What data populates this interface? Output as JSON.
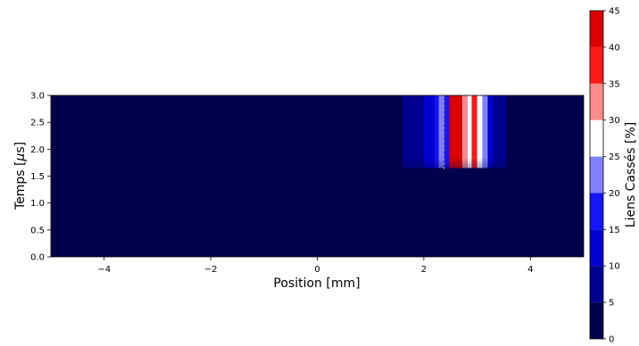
{
  "chart_data": {
    "type": "heatmap",
    "xlabel": "Position [mm]",
    "ylabel_prefix": "Temps [",
    "ylabel_mu": "µ",
    "ylabel_suffix": "s]",
    "xlim": [
      -5,
      5
    ],
    "ylim": [
      0,
      3
    ],
    "x_ticks": [
      -4,
      -2,
      0,
      2,
      4
    ],
    "x_tick_labels": [
      "−4",
      "−2",
      "0",
      "2",
      "4"
    ],
    "y_ticks": [
      0,
      0.5,
      1,
      1.5,
      2,
      2.5,
      3
    ],
    "y_tick_labels": [
      "0.0",
      "0.5",
      "1.0",
      "1.5",
      "2.0",
      "2.5",
      "3.0"
    ],
    "colorbar": {
      "label": "Liens Cassés [%]",
      "levels": [
        0,
        5,
        10,
        15,
        20,
        25,
        30,
        35,
        40,
        45
      ],
      "tick_labels": [
        "0",
        "5",
        "10",
        "15",
        "20",
        "25",
        "30",
        "35",
        "40",
        "45"
      ],
      "colors": [
        "#00004c",
        "#00008f",
        "#0000d0",
        "#1414ff",
        "#8080ff",
        "#ffffff",
        "#ff8c8c",
        "#ff1a1a",
        "#dc0000",
        "#990000"
      ]
    },
    "background_value": 0,
    "columns": [
      {
        "x0": -5.0,
        "x1": 1.0,
        "value": 1
      },
      {
        "x0": 1.0,
        "x1": 1.3,
        "value": 2
      },
      {
        "x0": 1.3,
        "x1": 1.6,
        "value": 4
      },
      {
        "x0": 1.6,
        "x1": 1.8,
        "value": 6
      },
      {
        "x0": 1.8,
        "x1": 2.0,
        "value": 9
      },
      {
        "x0": 2.0,
        "x1": 2.2,
        "value": 13
      },
      {
        "x0": 2.2,
        "x1": 2.28,
        "value": 17
      },
      {
        "x0": 2.28,
        "x1": 2.38,
        "value": 22
      },
      {
        "x0": 2.38,
        "x1": 2.48,
        "value": 18
      },
      {
        "x0": 2.48,
        "x1": 2.72,
        "value": 43
      },
      {
        "x0": 2.72,
        "x1": 2.82,
        "value": 33
      },
      {
        "x0": 2.82,
        "x1": 2.9,
        "value": 26
      },
      {
        "x0": 2.9,
        "x1": 3.0,
        "value": 36
      },
      {
        "x0": 3.0,
        "x1": 3.1,
        "value": 29
      },
      {
        "x0": 3.1,
        "x1": 3.2,
        "value": 22
      },
      {
        "x0": 3.2,
        "x1": 3.3,
        "value": 13
      },
      {
        "x0": 3.3,
        "x1": 3.55,
        "value": 7
      },
      {
        "x0": 3.55,
        "x1": 3.8,
        "value": 3
      }
    ],
    "onset_time": 1.65,
    "fade_band": [
      1.3,
      1.85
    ],
    "marker_line_x": 2.38
  }
}
